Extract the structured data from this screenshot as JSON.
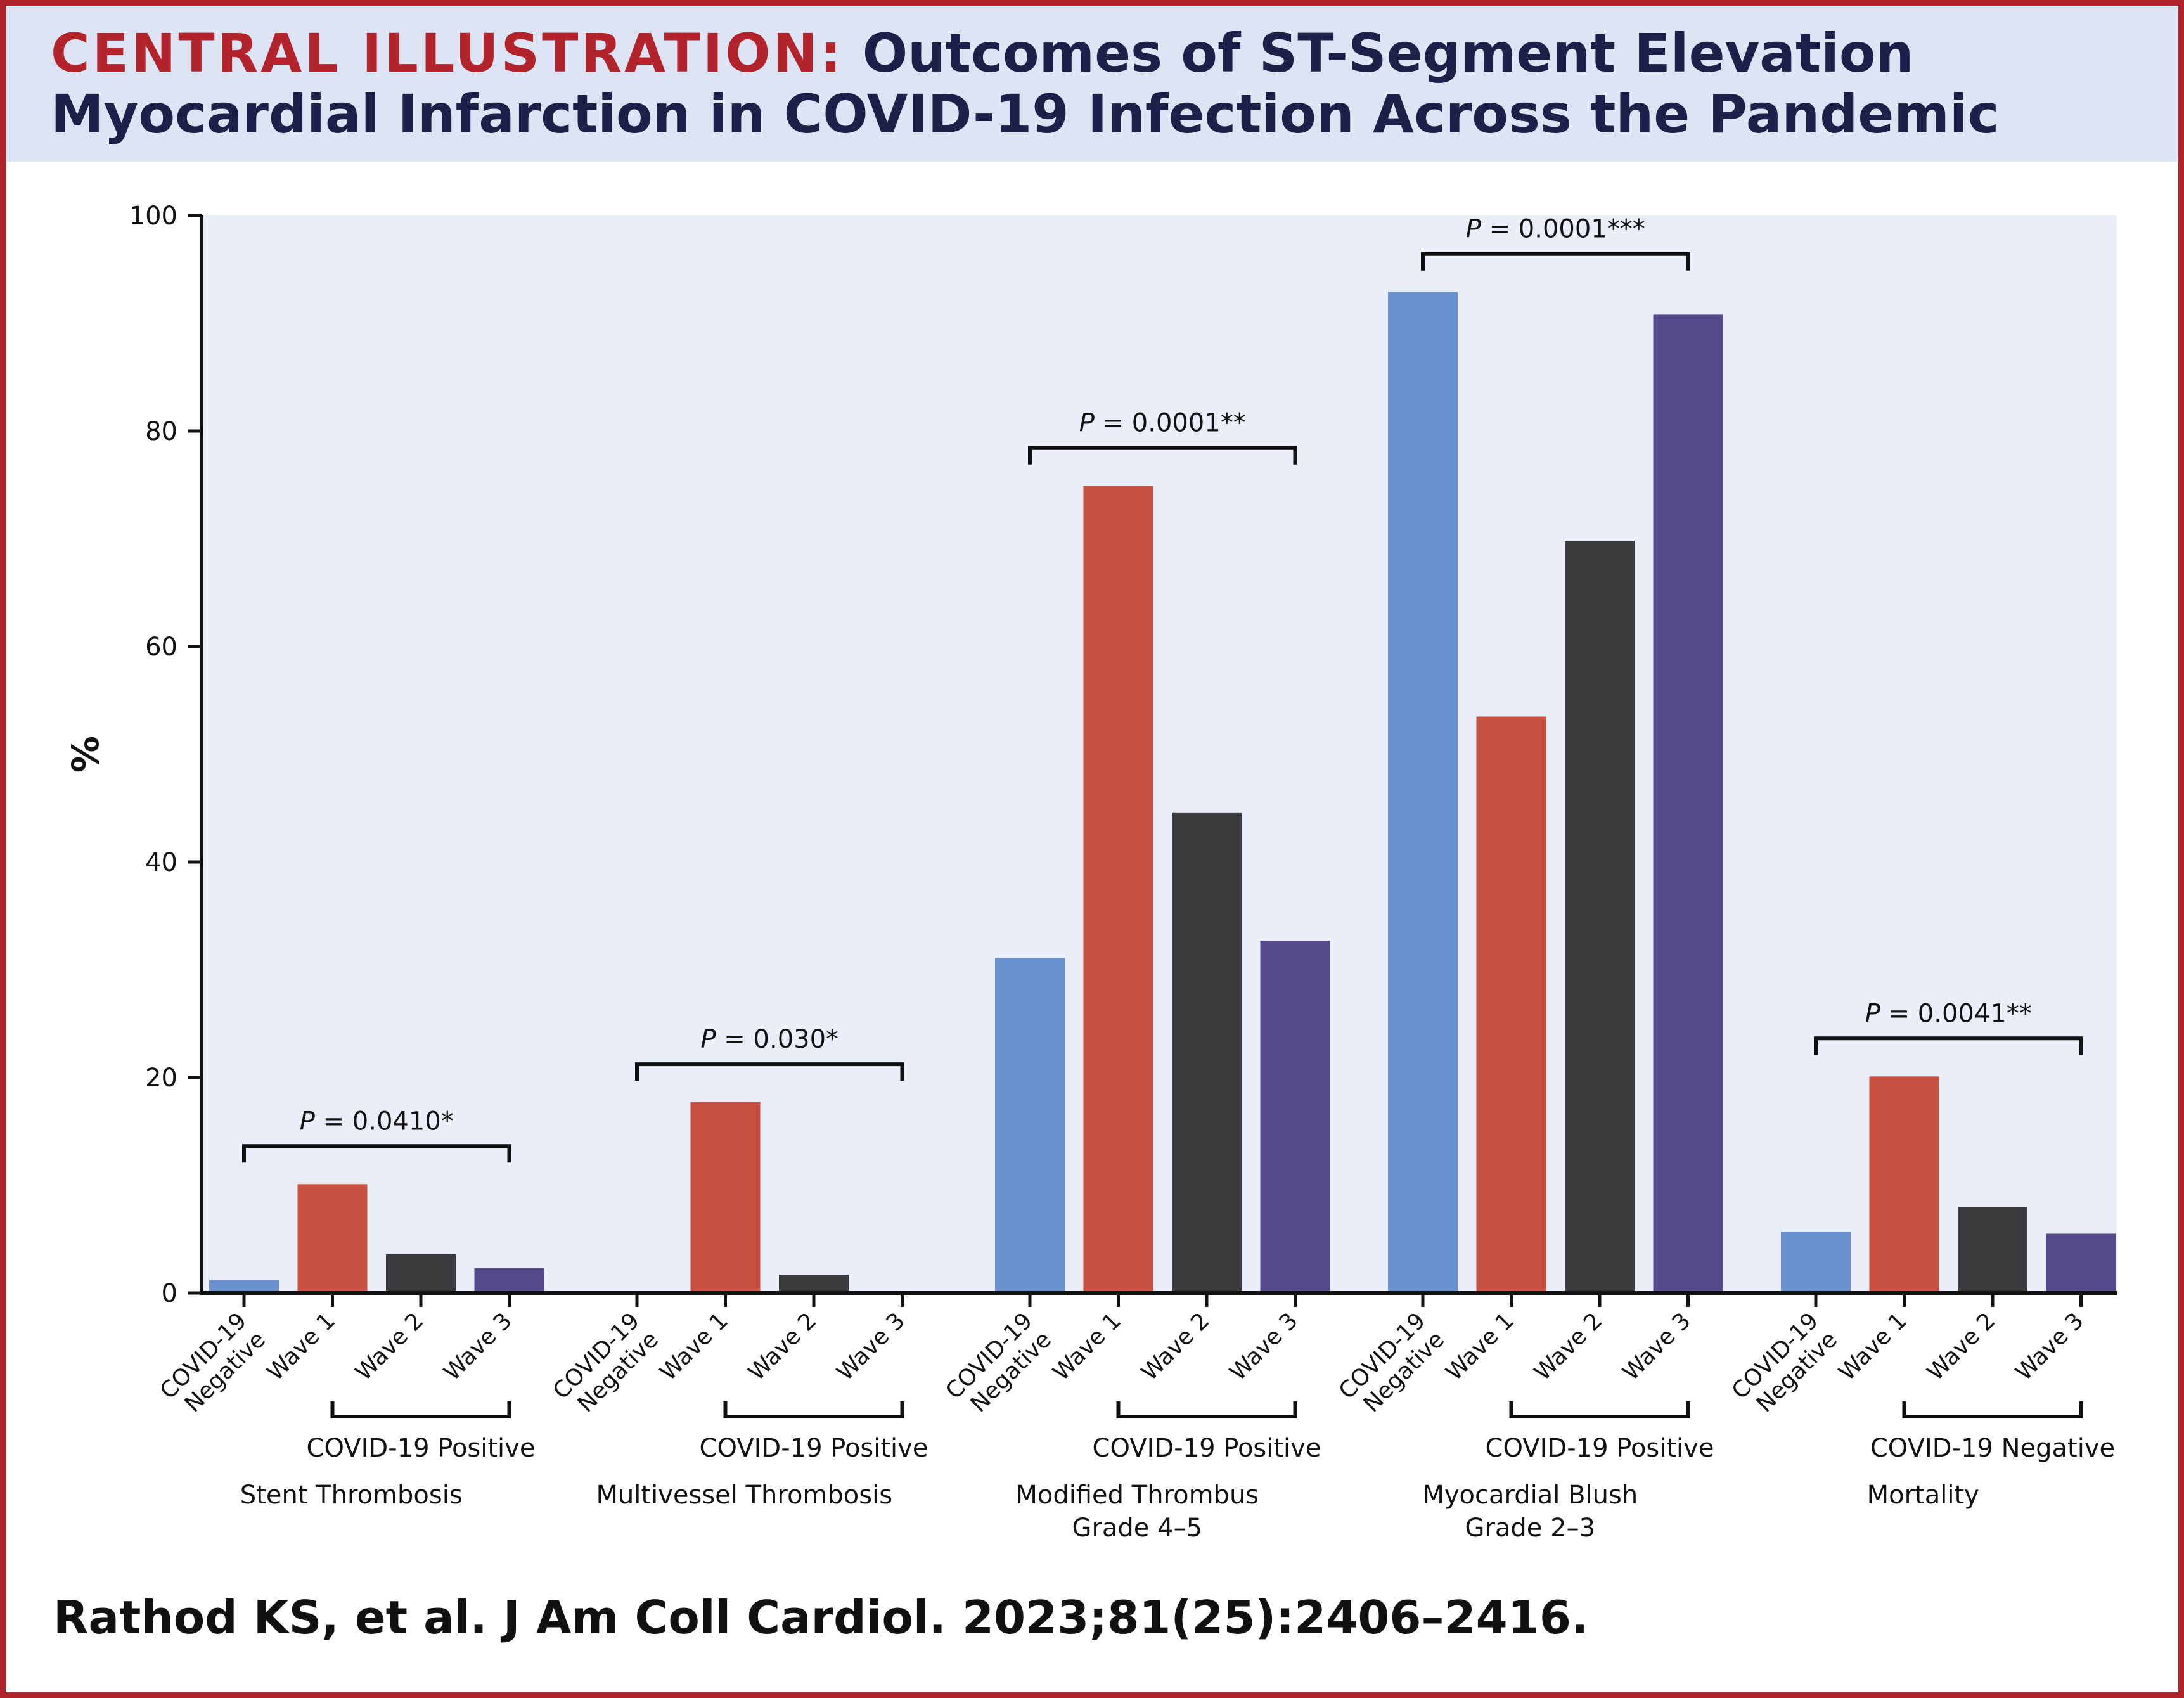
{
  "header": {
    "prefix": "CENTRAL ILLUSTRATION:",
    "title": "Outcomes of ST-Segment Elevation Myocardial Infarction in COVID-19 Infection Across the Pandemic"
  },
  "citation": "Rathod KS, et al. J Am Coll Cardiol. 2023;81(25):2406–2416.",
  "colors": {
    "covid_negative": "#6b91cf",
    "wave1": "#c85040",
    "wave2": "#3b3b3d",
    "wave3": "#564a8d",
    "plot_background": "#e9eef8",
    "accent": "#b3232c"
  },
  "chart_data": {
    "type": "bar",
    "ylabel": "%",
    "ylim": [
      0,
      100
    ],
    "yticks": [
      0,
      20,
      40,
      60,
      80,
      100
    ],
    "bar_labels": [
      "COVID-19 Negative",
      "Wave 1",
      "Wave 2",
      "Wave 3"
    ],
    "groups": [
      {
        "outcome": "Stent Thrombosis",
        "subgroup": "COVID-19 Positive",
        "values": [
          1.2,
          10.1,
          3.6,
          2.3
        ],
        "pvalue": "P = 0.0410*"
      },
      {
        "outcome": "Multivessel Thrombosis",
        "subgroup": "COVID-19 Positive",
        "values": [
          0,
          17.7,
          1.7,
          0
        ],
        "pvalue": "P = 0.030*"
      },
      {
        "outcome": "Modified Thrombus Grade 4–5",
        "subgroup": "COVID-19 Positive",
        "values": [
          31.1,
          74.9,
          44.6,
          32.7
        ],
        "pvalue": "P = 0.0001**"
      },
      {
        "outcome": "Myocardial Blush Grade 2–3",
        "subgroup": "COVID-19 Positive",
        "values": [
          92.9,
          53.5,
          69.8,
          90.8
        ],
        "pvalue": "P = 0.0001***"
      },
      {
        "outcome": "Mortality",
        "subgroup": "COVID-19 Negative",
        "values": [
          5.7,
          20.1,
          8.0,
          5.5
        ],
        "pvalue": "P = 0.0041**"
      }
    ]
  }
}
